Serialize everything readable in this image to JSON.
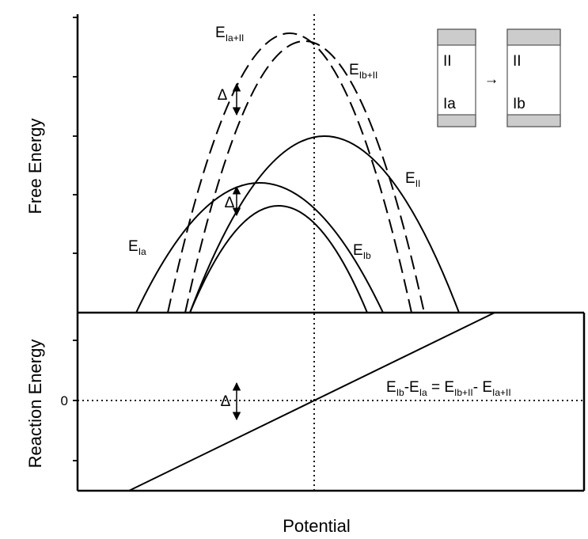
{
  "axes": {
    "y_top_title": "Free Energy",
    "y_bottom_title": "Reaction Energy",
    "x_title": "Potential",
    "zero_label": "0"
  },
  "curves": [
    {
      "main": "E",
      "sub": "Ia+II"
    },
    {
      "main": "E",
      "sub": "Ib+II"
    },
    {
      "main": "E",
      "sub": "II"
    },
    {
      "main": "E",
      "sub": "Ia"
    },
    {
      "main": "E",
      "sub": "Ib"
    }
  ],
  "delta": [
    "Δ",
    "Δ",
    "Δ"
  ],
  "equation": [
    {
      "main": "E",
      "sub": "Ib"
    },
    {
      "main": "-E",
      "sub": "Ia"
    },
    {
      "main": " = E",
      "sub": "Ib+II"
    },
    {
      "main": "- E",
      "sub": "Ia+II"
    }
  ],
  "inset": {
    "left": [
      "II",
      "Ia"
    ],
    "arrow": "→",
    "right": [
      "II",
      "Ib"
    ]
  }
}
